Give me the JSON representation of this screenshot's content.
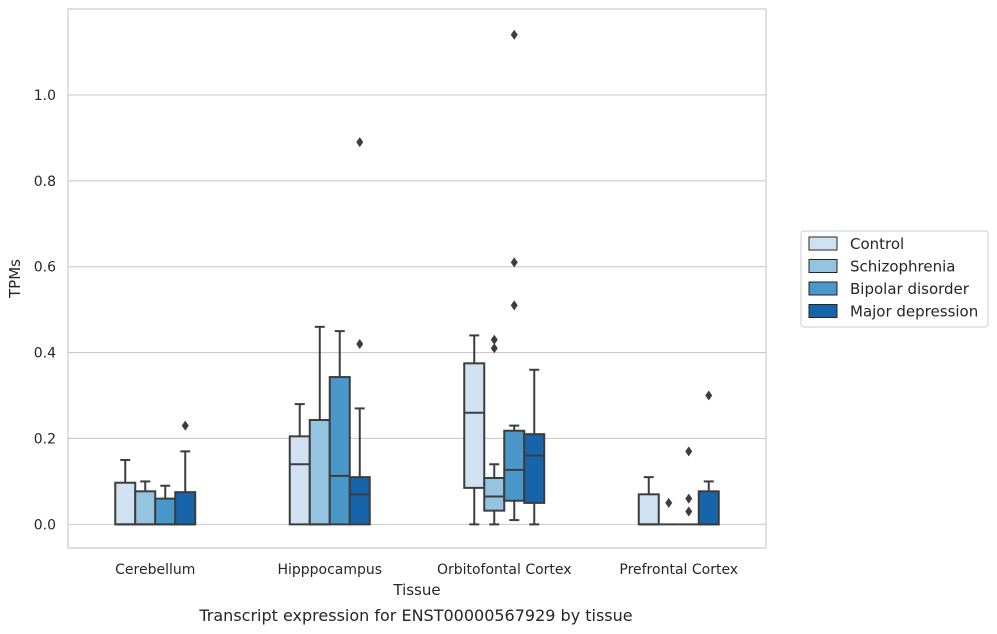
{
  "chart_data": {
    "type": "boxplot",
    "caption": "Transcript expression for ENST00000567929 by tissue",
    "xlabel": "Tissue",
    "ylabel": "TPMs",
    "ylim": [
      -0.055,
      1.2
    ],
    "yticks": [
      "0.0",
      "0.2",
      "0.4",
      "0.6",
      "0.8",
      "1.0"
    ],
    "ytick_values": [
      0.0,
      0.2,
      0.4,
      0.6,
      0.8,
      1.0
    ],
    "grid": true,
    "legend_position": "right",
    "categories": [
      "Cerebellum",
      "Hipppocampus",
      "Orbitofontal Cortex",
      "Prefrontal Cortex"
    ],
    "series": [
      {
        "name": "Control",
        "color": "#d0e1f2",
        "boxes": [
          {
            "whislo": 0.0,
            "q1": 0.0,
            "med": 0.0,
            "q3": 0.097,
            "whishi": 0.15,
            "fliers": []
          },
          {
            "whislo": 0.0,
            "q1": 0.0,
            "med": 0.14,
            "q3": 0.205,
            "whishi": 0.28,
            "fliers": []
          },
          {
            "whislo": 0.0,
            "q1": 0.085,
            "med": 0.26,
            "q3": 0.375,
            "whishi": 0.44,
            "fliers": []
          },
          {
            "whislo": 0.0,
            "q1": 0.0,
            "med": 0.0,
            "q3": 0.07,
            "whishi": 0.11,
            "fliers": []
          }
        ]
      },
      {
        "name": "Schizophrenia",
        "color": "#94c4df",
        "boxes": [
          {
            "whislo": 0.0,
            "q1": 0.0,
            "med": 0.0,
            "q3": 0.077,
            "whishi": 0.1,
            "fliers": []
          },
          {
            "whislo": 0.0,
            "q1": 0.0,
            "med": 0.0,
            "q3": 0.243,
            "whishi": 0.46,
            "fliers": []
          },
          {
            "whislo": 0.0,
            "q1": 0.032,
            "med": 0.065,
            "q3": 0.108,
            "whishi": 0.14,
            "fliers": [
              0.41,
              0.43
            ]
          },
          {
            "whislo": 0.0,
            "q1": 0.0,
            "med": 0.0,
            "q3": 0.0,
            "whishi": 0.0,
            "fliers": [
              0.05
            ]
          }
        ]
      },
      {
        "name": "Bipolar disorder",
        "color": "#4a98c9",
        "boxes": [
          {
            "whislo": 0.0,
            "q1": 0.0,
            "med": 0.0,
            "q3": 0.06,
            "whishi": 0.09,
            "fliers": []
          },
          {
            "whislo": 0.0,
            "q1": 0.0,
            "med": 0.113,
            "q3": 0.343,
            "whishi": 0.45,
            "fliers": []
          },
          {
            "whislo": 0.01,
            "q1": 0.055,
            "med": 0.127,
            "q3": 0.218,
            "whishi": 0.23,
            "fliers": [
              0.51,
              0.61,
              1.14
            ]
          },
          {
            "whislo": 0.0,
            "q1": 0.0,
            "med": 0.0,
            "q3": 0.0,
            "whishi": 0.0,
            "fliers": [
              0.03,
              0.06,
              0.17
            ]
          }
        ]
      },
      {
        "name": "Major depression",
        "color": "#1764ab",
        "boxes": [
          {
            "whislo": 0.0,
            "q1": 0.0,
            "med": 0.0,
            "q3": 0.075,
            "whishi": 0.17,
            "fliers": [
              0.23
            ]
          },
          {
            "whislo": 0.0,
            "q1": 0.0,
            "med": 0.07,
            "q3": 0.11,
            "whishi": 0.27,
            "fliers": [
              0.42,
              0.89
            ]
          },
          {
            "whislo": 0.0,
            "q1": 0.05,
            "med": 0.16,
            "q3": 0.21,
            "whishi": 0.36,
            "fliers": []
          },
          {
            "whislo": 0.0,
            "q1": 0.0,
            "med": 0.0,
            "q3": 0.077,
            "whishi": 0.1,
            "fliers": [
              0.3
            ]
          }
        ]
      }
    ]
  }
}
